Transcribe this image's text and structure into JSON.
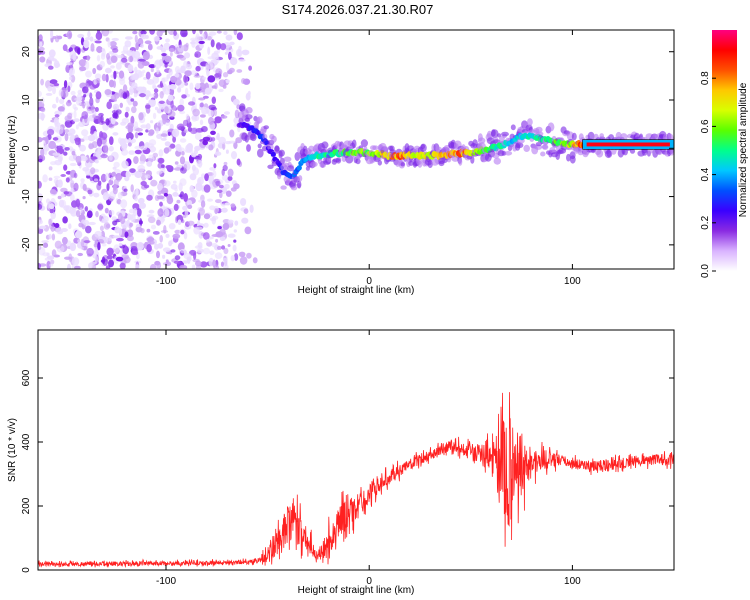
{
  "title": "S174.2026.037.21.30.R07",
  "chart_data": [
    {
      "type": "heatmap",
      "name": "spectrogram",
      "xlabel": "Height of straight line (km)",
      "ylabel": "Frequency (Hz)",
      "xlim": [
        -163,
        150
      ],
      "ylim": [
        -25,
        24.5
      ],
      "xticks": [
        -100,
        0,
        100
      ],
      "yticks": [
        -20,
        -10,
        0,
        10,
        20
      ],
      "colorbar": {
        "label": "Normalized spectral amplitude",
        "range": [
          0,
          1
        ],
        "ticks": [
          "0.0",
          "0.2",
          "0.4",
          "0.6",
          "0.8"
        ],
        "stops": [
          "#ffffff",
          "#d9b3ff",
          "#8a2be2",
          "#3a00ff",
          "#0050ff",
          "#00c8ff",
          "#00ff8c",
          "#5aff00",
          "#d8ff00",
          "#ffc800",
          "#ff5000",
          "#ff0000",
          "#ff0080"
        ]
      },
      "noise_region_x": [
        -163,
        -55
      ],
      "ridge": {
        "x": [
          -64,
          -57,
          -52,
          -48,
          -45,
          -42,
          -39,
          -36,
          -33,
          -30,
          -27,
          -24,
          -20,
          -15,
          -10,
          -5,
          0,
          5,
          10,
          15,
          20,
          25,
          30,
          35,
          40,
          45,
          50,
          55,
          60,
          65,
          70,
          75,
          80,
          85,
          90,
          95,
          100,
          105,
          110,
          120,
          130,
          140,
          150
        ],
        "y": [
          5,
          4,
          2,
          -1,
          -3,
          -5,
          -6,
          -5,
          -3,
          -2,
          -1.5,
          -1.5,
          -1.2,
          -1,
          -0.8,
          -0.8,
          -1,
          -1.2,
          -1.5,
          -1.5,
          -1.5,
          -1.5,
          -1.5,
          -1.5,
          -1.2,
          -1,
          -0.8,
          -0.5,
          0,
          0.5,
          1.5,
          2.5,
          2.5,
          2,
          1.5,
          1,
          0.8,
          0.8,
          0.8,
          0.8,
          0.8,
          0.8,
          0.8
        ],
        "amplitude": [
          0.2,
          0.3,
          0.3,
          0.25,
          0.25,
          0.3,
          0.35,
          0.35,
          0.4,
          0.45,
          0.5,
          0.5,
          0.5,
          0.55,
          0.6,
          0.65,
          0.6,
          0.7,
          0.8,
          0.85,
          0.75,
          0.7,
          0.7,
          0.75,
          0.8,
          0.85,
          0.75,
          0.6,
          0.55,
          0.5,
          0.45,
          0.45,
          0.5,
          0.5,
          0.55,
          0.6,
          0.7,
          0.9,
          0.95,
          0.95,
          0.95,
          0.95,
          0.9
        ]
      }
    },
    {
      "type": "line",
      "name": "snr",
      "xlabel": "Height of straight line (km)",
      "ylabel": "SNR (10 * v/v)",
      "xlim": [
        -163,
        150
      ],
      "ylim": [
        0,
        750
      ],
      "xticks": [
        -100,
        0,
        100
      ],
      "yticks": [
        0,
        200,
        400,
        600
      ],
      "color": "#ff2020",
      "envelope": {
        "x": [
          -163,
          -120,
          -80,
          -60,
          -55,
          -50,
          -45,
          -40,
          -37,
          -35,
          -30,
          -25,
          -22,
          -20,
          -15,
          -10,
          -5,
          0,
          10,
          20,
          30,
          40,
          50,
          55,
          60,
          63,
          65,
          67,
          69,
          70,
          71,
          72,
          74,
          76,
          78,
          80,
          85,
          90,
          100,
          110,
          120,
          130,
          140,
          150
        ],
        "mean": [
          18,
          20,
          22,
          25,
          30,
          45,
          80,
          140,
          150,
          130,
          90,
          40,
          60,
          95,
          150,
          180,
          200,
          240,
          290,
          330,
          360,
          390,
          370,
          360,
          350,
          340,
          320,
          310,
          300,
          300,
          310,
          320,
          330,
          330,
          320,
          330,
          345,
          345,
          335,
          325,
          330,
          340,
          345,
          345
        ],
        "spread": [
          12,
          12,
          12,
          12,
          15,
          40,
          80,
          120,
          110,
          100,
          60,
          30,
          50,
          80,
          90,
          90,
          70,
          50,
          40,
          30,
          30,
          30,
          40,
          60,
          100,
          180,
          240,
          300,
          330,
          350,
          300,
          230,
          180,
          150,
          120,
          90,
          60,
          40,
          30,
          30,
          30,
          30,
          30,
          30
        ]
      }
    }
  ]
}
